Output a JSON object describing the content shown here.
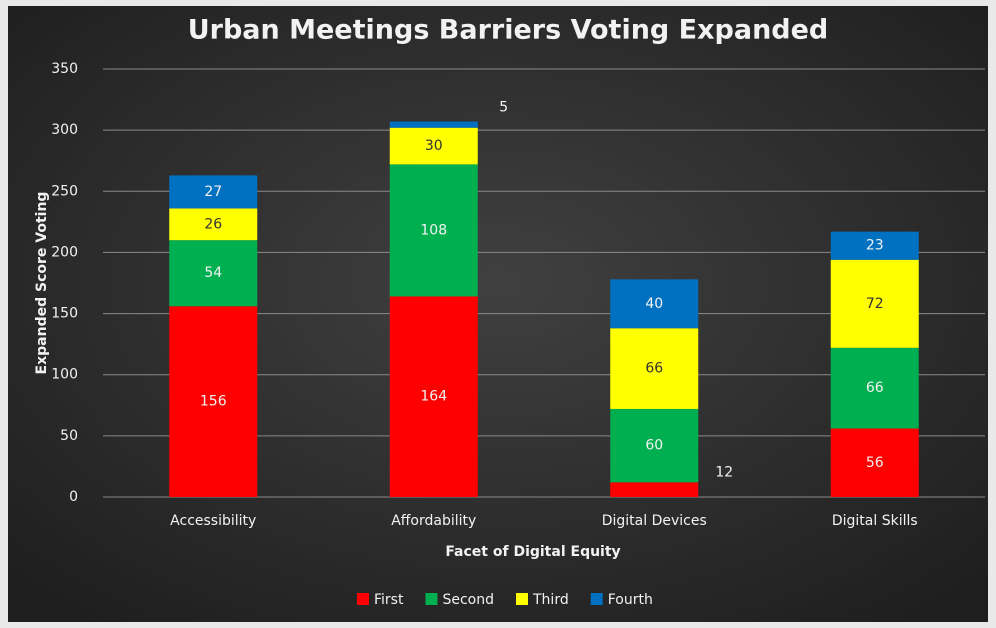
{
  "chart_data": {
    "type": "stacked_bar",
    "title": "Urban Meetings Barriers Voting Expanded",
    "xlabel": "Facet of Digital Equity",
    "ylabel": "Expanded Score Voting",
    "categories": [
      "Accessibility",
      "Affordability",
      "Digital Devices",
      "Digital Skills"
    ],
    "series": [
      {
        "name": "First",
        "color": "#ff0000",
        "values": [
          156,
          164,
          12,
          56
        ]
      },
      {
        "name": "Second",
        "color": "#00b050",
        "values": [
          54,
          108,
          60,
          66
        ]
      },
      {
        "name": "Third",
        "color": "#ffff00",
        "values": [
          26,
          30,
          66,
          72
        ]
      },
      {
        "name": "Fourth",
        "color": "#0070c0",
        "values": [
          27,
          5,
          40,
          23
        ]
      }
    ],
    "ylim": [
      0,
      350
    ],
    "yticks": [
      0,
      50,
      100,
      150,
      200,
      250,
      300,
      350
    ],
    "grid": true,
    "legend": "bottom"
  }
}
